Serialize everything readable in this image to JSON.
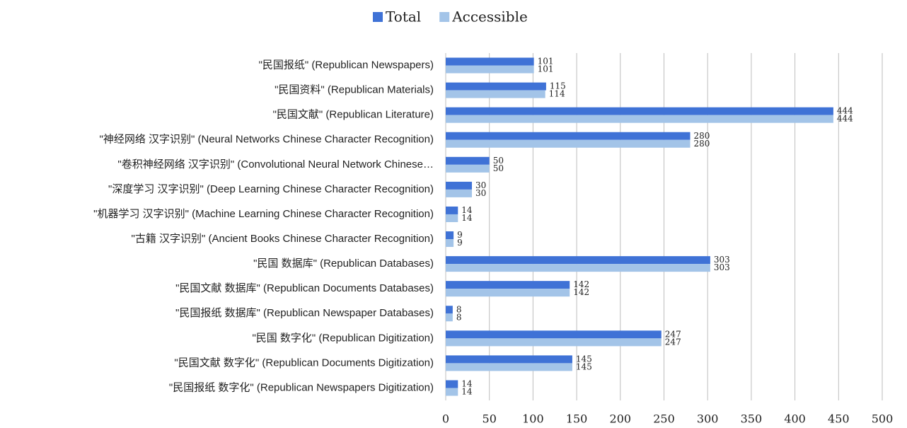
{
  "chart_data": {
    "type": "bar",
    "orientation": "horizontal",
    "categories": [
      "\"民国报纸\" (Republican Newspapers)",
      "\"民国资料\" (Republican Materials)",
      "\"民国文献\" (Republican Literature)",
      "\"神经网络 汉字识别\" (Neural Networks Chinese Character Recognition)",
      "\"卷积神经网络 汉字识别\" (Convolutional Neural Network Chinese…",
      "\"深度学习 汉字识别\" (Deep Learning  Chinese Character Recognition)",
      "\"机器学习 汉字识别\" (Machine Learning  Chinese Character Recognition)",
      "\"古籍 汉字识别\" (Ancient Books Chinese Character Recognition)",
      "\"民国 数据库\" (Republican Databases)",
      "\"民国文献 数据库\" (Republican Documents Databases)",
      "\"民国报纸 数据库\" (Republican Newspaper Databases)",
      "\"民国 数字化\" (Republican Digitization)",
      "\"民国文献 数字化\" (Republican Documents Digitization)",
      "\"民国报纸 数字化\" (Republican Newspapers Digitization)"
    ],
    "series": [
      {
        "name": "Total",
        "color": "#3f72d6",
        "values": [
          101,
          115,
          444,
          280,
          50,
          30,
          14,
          9,
          303,
          142,
          8,
          247,
          145,
          14
        ]
      },
      {
        "name": "Accessible",
        "color": "#a3c4e8",
        "values": [
          101,
          114,
          444,
          280,
          50,
          30,
          14,
          9,
          303,
          142,
          8,
          247,
          145,
          14
        ]
      }
    ],
    "xlim": [
      0,
      500
    ],
    "xticks": [
      0,
      50,
      100,
      150,
      200,
      250,
      300,
      350,
      400,
      450,
      500
    ],
    "grid": true,
    "legend": "top"
  }
}
